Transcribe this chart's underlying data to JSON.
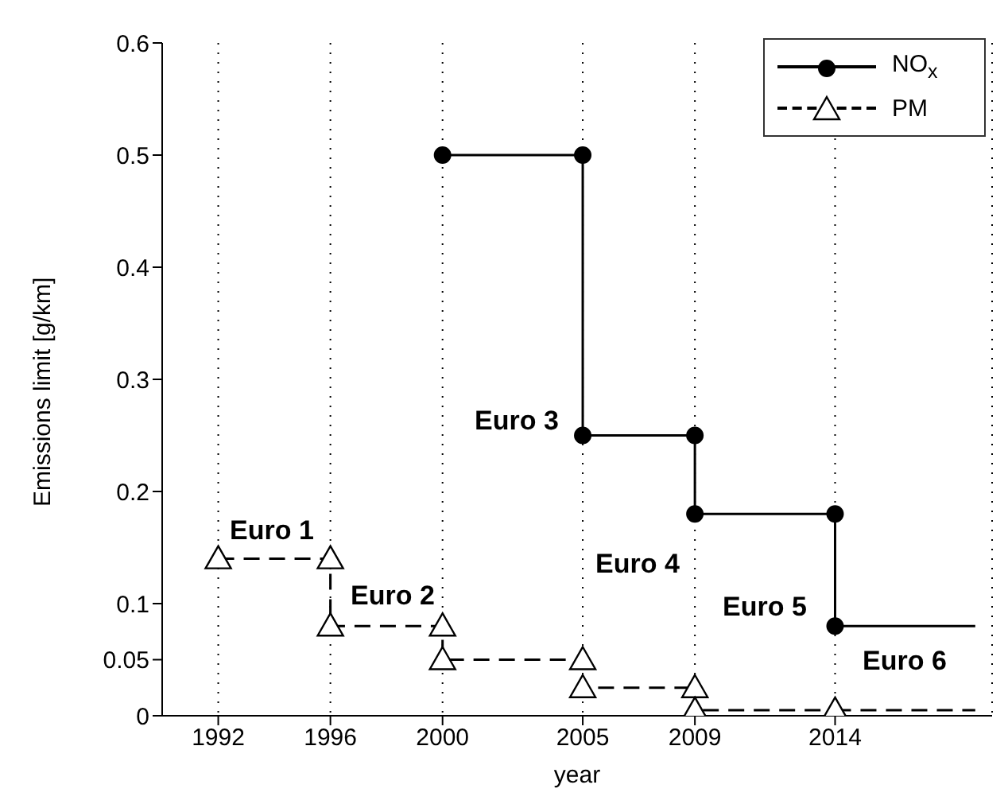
{
  "chart_data": {
    "type": "line",
    "xlabel": "year",
    "ylabel": "Emissions limit [g/km]",
    "xlim": [
      1990,
      2019.6
    ],
    "xticks": [
      1992,
      1996,
      2000,
      2005,
      2009,
      2014
    ],
    "ylim": [
      0,
      0.6
    ],
    "yticks": [
      0,
      0.05,
      0.1,
      0.2,
      0.3,
      0.4,
      0.5,
      0.6
    ],
    "grid": "x",
    "legend": "top right",
    "series": [
      {
        "name": "NO$_{x}$",
        "color": "#000000",
        "marker": "circle",
        "line_style": "solid",
        "x": [
          2000,
          2005,
          2005,
          2009,
          2009,
          2014,
          2014
        ],
        "values": [
          0.5,
          0.5,
          0.25,
          0.25,
          0.18,
          0.18,
          0.08
        ]
      },
      {
        "color": "#000000",
        "marker": "none",
        "line_style": "solid",
        "x": [
          2014,
          2019
        ],
        "values": [
          0.08,
          0.08
        ]
      },
      {
        "name": "PM",
        "color": "#000000",
        "marker": "triangle",
        "line_style": "dashed",
        "x": [
          1992,
          1996,
          1996,
          2000,
          2000,
          2005,
          2005,
          2009,
          2009,
          2014
        ],
        "values": [
          0.14,
          0.14,
          0.08,
          0.08,
          0.05,
          0.05,
          0.025,
          0.025,
          0.005,
          0.005
        ]
      },
      {
        "color": "#000000",
        "marker": "none",
        "line_style": "dashed",
        "x": [
          2014,
          2019
        ],
        "values": [
          0.005,
          0.005
        ]
      }
    ],
    "annotations": [
      "Euro 1",
      "Euro 2",
      "Euro 3",
      "Euro 4",
      "Euro 5",
      "Euro 6"
    ]
  }
}
